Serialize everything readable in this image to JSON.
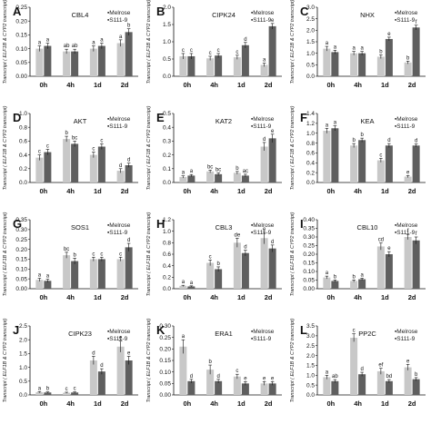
{
  "y_axis_label": "Transcript ( ELF1B & CYP2 transcript)",
  "legend": [
    "Melrose",
    "S111-9"
  ],
  "colors": {
    "melrose": "#c8c8c8",
    "s111": "#5f5f5f",
    "axis": "#111111",
    "error": "#111111"
  },
  "chart_data": [
    {
      "type": "bar",
      "letter": "A",
      "gene": "CBL4",
      "categories": [
        "0h",
        "4h",
        "1d",
        "2d"
      ],
      "ylim": [
        0,
        0.25
      ],
      "yticks": [
        "0.00",
        "0.05",
        "0.10",
        "0.15",
        "0.20",
        "0.25"
      ],
      "series": [
        {
          "name": "Melrose",
          "values": [
            0.1,
            0.09,
            0.1,
            0.12
          ],
          "errors": [
            0.01,
            0.008,
            0.01,
            0.012
          ],
          "letters": [
            "a",
            "ab",
            "a",
            "a"
          ]
        },
        {
          "name": "S111-9",
          "values": [
            0.11,
            0.09,
            0.11,
            0.16
          ],
          "errors": [
            0.01,
            0.008,
            0.01,
            0.012
          ],
          "letters": [
            "a",
            "ab",
            "a",
            "b"
          ]
        }
      ]
    },
    {
      "type": "bar",
      "letter": "B",
      "gene": "CIPK24",
      "categories": [
        "0h",
        "4h",
        "1d",
        "2d"
      ],
      "ylim": [
        0,
        2.0
      ],
      "yticks": [
        "0.0",
        "0.5",
        "1.0",
        "1.5",
        "2.0"
      ],
      "series": [
        {
          "name": "Melrose",
          "values": [
            0.58,
            0.52,
            0.55,
            0.33
          ],
          "errors": [
            0.08,
            0.06,
            0.06,
            0.05
          ],
          "letters": [
            "c",
            "c",
            "c",
            "a"
          ]
        },
        {
          "name": "S111-9",
          "values": [
            0.58,
            0.6,
            0.9,
            1.45
          ],
          "errors": [
            0.08,
            0.06,
            0.08,
            0.08
          ],
          "letters": [
            "c",
            "c",
            "d",
            "e"
          ]
        }
      ]
    },
    {
      "type": "bar",
      "letter": "C",
      "gene": "NHX",
      "categories": [
        "0h",
        "4h",
        "1d",
        "2d"
      ],
      "ylim": [
        0,
        3.0
      ],
      "yticks": [
        "0.0",
        "0.5",
        "1.0",
        "1.5",
        "2.0",
        "2.5",
        "3.0"
      ],
      "series": [
        {
          "name": "Melrose",
          "values": [
            1.2,
            1.0,
            0.85,
            0.6
          ],
          "errors": [
            0.1,
            0.08,
            0.08,
            0.06
          ],
          "letters": [
            "a",
            "a",
            "b",
            "b"
          ]
        },
        {
          "name": "S111-9",
          "values": [
            1.05,
            1.0,
            1.62,
            2.12
          ],
          "errors": [
            0.08,
            0.08,
            0.08,
            0.1
          ],
          "letters": [
            "a",
            "a",
            "e",
            "f"
          ]
        }
      ]
    },
    {
      "type": "bar",
      "letter": "D",
      "gene": "AKT",
      "categories": [
        "0h",
        "4h",
        "1d",
        "2d"
      ],
      "ylim": [
        0,
        1.0
      ],
      "yticks": [
        "0.0",
        "0.2",
        "0.4",
        "0.6",
        "0.8",
        "1.0"
      ],
      "series": [
        {
          "name": "Melrose",
          "values": [
            0.36,
            0.63,
            0.4,
            0.17
          ],
          "errors": [
            0.04,
            0.04,
            0.04,
            0.03
          ],
          "letters": [
            "c",
            "b",
            "c",
            "d"
          ]
        },
        {
          "name": "S111-9",
          "values": [
            0.44,
            0.56,
            0.52,
            0.25
          ],
          "errors": [
            0.04,
            0.04,
            0.04,
            0.03
          ],
          "letters": [
            "c",
            "bc",
            "c",
            "d"
          ]
        }
      ]
    },
    {
      "type": "bar",
      "letter": "E",
      "gene": "KAT2",
      "categories": [
        "0h",
        "4h",
        "1d",
        "2d"
      ],
      "ylim": [
        0,
        0.5
      ],
      "yticks": [
        "0.0",
        "0.1",
        "0.2",
        "0.3",
        "0.4",
        "0.5"
      ],
      "series": [
        {
          "name": "Melrose",
          "values": [
            0.04,
            0.08,
            0.07,
            0.26
          ],
          "errors": [
            0.008,
            0.01,
            0.01,
            0.03
          ],
          "letters": [
            "a",
            "bc",
            "b",
            "d"
          ]
        },
        {
          "name": "S111-9",
          "values": [
            0.05,
            0.06,
            0.05,
            0.32
          ],
          "errors": [
            0.008,
            0.01,
            0.01,
            0.03
          ],
          "letters": [
            "a",
            "bc",
            "ac",
            "e"
          ]
        }
      ]
    },
    {
      "type": "bar",
      "letter": "F",
      "gene": "KEA",
      "categories": [
        "0h",
        "4h",
        "1d",
        "2d"
      ],
      "ylim": [
        0,
        1.4
      ],
      "yticks": [
        "0.0",
        "0.2",
        "0.4",
        "0.6",
        "0.8",
        "1.0",
        "1.2",
        "1.4"
      ],
      "series": [
        {
          "name": "Melrose",
          "values": [
            1.05,
            0.75,
            0.45,
            0.12
          ],
          "errors": [
            0.05,
            0.04,
            0.04,
            0.02
          ],
          "letters": [
            "a",
            "b",
            "c",
            "e"
          ]
        },
        {
          "name": "S111-9",
          "values": [
            1.1,
            0.86,
            0.75,
            0.75
          ],
          "errors": [
            0.05,
            0.04,
            0.04,
            0.03
          ],
          "letters": [
            "a",
            "b",
            "d",
            "d"
          ]
        }
      ]
    },
    {
      "type": "bar",
      "letter": "G",
      "gene": "SOS1",
      "categories": [
        "0h",
        "4h",
        "1d",
        "2d"
      ],
      "ylim": [
        0,
        0.35
      ],
      "yticks": [
        "0.00",
        "0.05",
        "0.10",
        "0.15",
        "0.20",
        "0.25",
        "0.30",
        "0.35"
      ],
      "series": [
        {
          "name": "Melrose",
          "values": [
            0.045,
            0.17,
            0.15,
            0.15
          ],
          "errors": [
            0.008,
            0.015,
            0.01,
            0.01
          ],
          "letters": [
            "a",
            "bc",
            "c",
            "c"
          ]
        },
        {
          "name": "S111-9",
          "values": [
            0.04,
            0.14,
            0.15,
            0.21
          ],
          "errors": [
            0.008,
            0.015,
            0.01,
            0.02
          ],
          "letters": [
            "a",
            "b",
            "c",
            "d"
          ]
        }
      ]
    },
    {
      "type": "bar",
      "letter": "H",
      "gene": "CBL3",
      "categories": [
        "0h",
        "4h",
        "1d",
        "2d"
      ],
      "ylim": [
        0,
        1.2
      ],
      "yticks": [
        "0.0",
        "0.2",
        "0.4",
        "0.6",
        "0.8",
        "1.0",
        "1.2"
      ],
      "series": [
        {
          "name": "Melrose",
          "values": [
            0.05,
            0.45,
            0.8,
            0.88
          ],
          "errors": [
            0.01,
            0.05,
            0.08,
            0.1
          ],
          "letters": [
            "a",
            "c",
            "de",
            "e"
          ]
        },
        {
          "name": "S111-9",
          "values": [
            0.04,
            0.34,
            0.62,
            0.7
          ],
          "errors": [
            0.01,
            0.04,
            0.05,
            0.06
          ],
          "letters": [
            "a",
            "b",
            "d",
            "d"
          ]
        }
      ]
    },
    {
      "type": "bar",
      "letter": "I",
      "gene": "CBL10",
      "categories": [
        "0h",
        "4h",
        "1d",
        "2d"
      ],
      "ylim": [
        0,
        0.4
      ],
      "yticks": [
        "0.00",
        "0.05",
        "0.10",
        "0.15",
        "0.20",
        "0.25",
        "0.30",
        "0.35",
        "0.40"
      ],
      "series": [
        {
          "name": "Melrose",
          "values": [
            0.065,
            0.045,
            0.245,
            0.3
          ],
          "errors": [
            0.008,
            0.006,
            0.02,
            0.015
          ],
          "letters": [
            "a",
            "b",
            "cd",
            "f"
          ]
        },
        {
          "name": "S111-9",
          "values": [
            0.045,
            0.055,
            0.2,
            0.28
          ],
          "errors": [
            0.006,
            0.006,
            0.015,
            0.02
          ],
          "letters": [
            "b",
            "a",
            "e",
            "f"
          ]
        }
      ]
    },
    {
      "type": "bar",
      "letter": "J",
      "gene": "CIPK23",
      "categories": [
        "0h",
        "4h",
        "1d",
        "2d"
      ],
      "ylim": [
        0,
        2.5
      ],
      "yticks": [
        "0.0",
        "0.5",
        "1.0",
        "1.5",
        "2.0",
        "2.5"
      ],
      "series": [
        {
          "name": "Melrose",
          "values": [
            0.1,
            0.08,
            1.25,
            1.75
          ],
          "errors": [
            0.02,
            0.02,
            0.15,
            0.2
          ],
          "letters": [
            "a",
            "c",
            "d",
            "e"
          ]
        },
        {
          "name": "S111-9",
          "values": [
            0.09,
            0.09,
            0.85,
            1.25
          ],
          "errors": [
            0.02,
            0.02,
            0.1,
            0.15
          ],
          "letters": [
            "b",
            "c",
            "d",
            "e"
          ]
        }
      ]
    },
    {
      "type": "bar",
      "letter": "K",
      "gene": "ERA1",
      "categories": [
        "0h",
        "4h",
        "1d",
        "2d"
      ],
      "ylim": [
        0,
        0.3
      ],
      "yticks": [
        "0.00",
        "0.05",
        "0.10",
        "0.15",
        "0.20",
        "0.25",
        "0.30"
      ],
      "series": [
        {
          "name": "Melrose",
          "values": [
            0.21,
            0.11,
            0.08,
            0.05
          ],
          "errors": [
            0.03,
            0.02,
            0.01,
            0.008
          ],
          "letters": [
            "a",
            "b",
            "c",
            "e"
          ]
        },
        {
          "name": "S111-9",
          "values": [
            0.06,
            0.06,
            0.05,
            0.05
          ],
          "errors": [
            0.008,
            0.008,
            0.008,
            0.008
          ],
          "letters": [
            "d",
            "d",
            "e",
            "e"
          ]
        }
      ]
    },
    {
      "type": "bar",
      "letter": "L",
      "gene": "PP2C",
      "categories": [
        "0h",
        "4h",
        "1d",
        "2d"
      ],
      "ylim": [
        0,
        3.5
      ],
      "yticks": [
        "0.0",
        "0.5",
        "1.0",
        "1.5",
        "2.0",
        "2.5",
        "3.0",
        "3.5"
      ],
      "series": [
        {
          "name": "Melrose",
          "values": [
            0.9,
            2.9,
            1.2,
            1.4
          ],
          "errors": [
            0.1,
            0.2,
            0.15,
            0.15
          ],
          "letters": [
            "a",
            "c",
            "ef",
            "e"
          ]
        },
        {
          "name": "S111-9",
          "values": [
            0.7,
            1.05,
            0.7,
            0.8
          ],
          "errors": [
            0.08,
            0.1,
            0.08,
            0.08
          ],
          "letters": [
            "ab",
            "d",
            "bd",
            "b"
          ]
        }
      ]
    }
  ]
}
